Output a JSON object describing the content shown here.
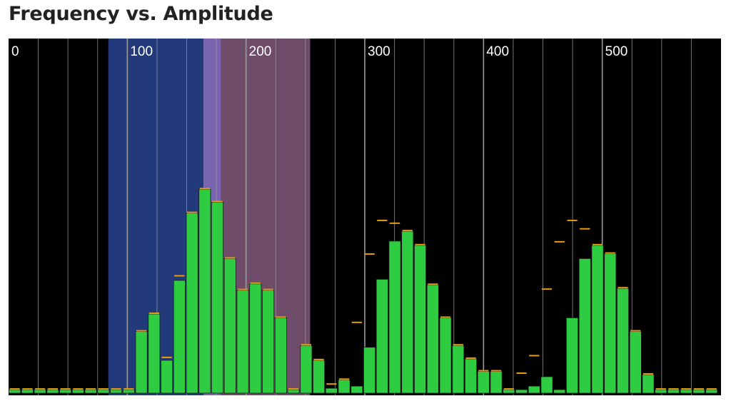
{
  "title": "Frequency vs. Amplitude",
  "chart_data": {
    "type": "bar",
    "title": "Frequency vs. Amplitude",
    "xlabel": "",
    "ylabel": "",
    "xlim": [
      0,
      600
    ],
    "ylim": [
      0,
      1
    ],
    "x_tick_labels": [
      "0",
      "100",
      "200",
      "300",
      "400",
      "500"
    ],
    "x_ticks": [
      0,
      100,
      200,
      300,
      400,
      500
    ],
    "bar_width": 10.67,
    "values": [
      0.01,
      0.01,
      0.01,
      0.01,
      0.01,
      0.01,
      0.01,
      0.01,
      0.01,
      0.01,
      0.176,
      0.226,
      0.094,
      0.322,
      0.514,
      0.582,
      0.545,
      0.384,
      0.294,
      0.312,
      0.294,
      0.215,
      0.01,
      0.136,
      0.094,
      0.014,
      0.038,
      0.02,
      0.131,
      0.325,
      0.434,
      0.462,
      0.422,
      0.309,
      0.215,
      0.136,
      0.098,
      0.062,
      0.062,
      0.01,
      0.01,
      0.02,
      0.047,
      0.01,
      0.215,
      0.384,
      0.422,
      0.398,
      0.299,
      0.176,
      0.053,
      0.01,
      0.01,
      0.01,
      0.01,
      0.01
    ],
    "peaks": [
      0.01,
      0.01,
      0.01,
      0.01,
      0.01,
      0.01,
      0.01,
      0.01,
      0.01,
      0.01,
      0.176,
      0.226,
      0.1,
      0.333,
      0.514,
      0.582,
      0.545,
      0.384,
      0.294,
      0.312,
      0.294,
      0.215,
      0.01,
      0.136,
      0.094,
      0.024,
      0.038,
      0.2,
      0.395,
      0.491,
      0.483,
      0.462,
      0.422,
      0.309,
      0.215,
      0.136,
      0.098,
      0.062,
      0.062,
      0.01,
      0.055,
      0.105,
      0.295,
      0.43,
      0.491,
      0.467,
      0.422,
      0.398,
      0.299,
      0.176,
      0.053,
      0.01,
      0.01,
      0.01,
      0.01,
      0.01
    ],
    "bands": [
      {
        "from": 84,
        "to": 164,
        "color": "#233a7a"
      },
      {
        "from": 164,
        "to": 179,
        "color": "#7a66b0"
      },
      {
        "from": 179,
        "to": 254,
        "color": "#6e4c6a"
      }
    ],
    "colors": {
      "background": "#000000",
      "bar": "#2ecc40",
      "bar_edge": "#1a1a1a",
      "peak": "#e89a10",
      "gridline": "#9a9a9a"
    },
    "grid": true,
    "legend": "none"
  }
}
